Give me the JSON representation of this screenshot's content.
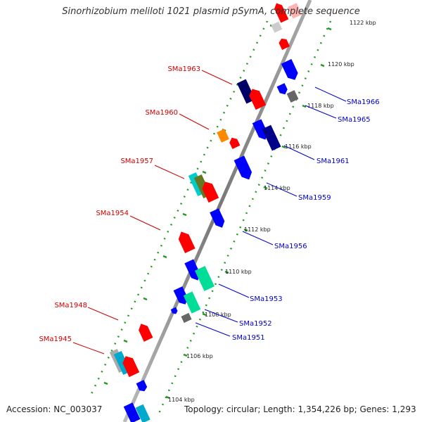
{
  "title": "Sinorhizobium meliloti 1021 plasmid pSymA, complete sequence",
  "accession": "Accession: NC_003037",
  "topology": "Topology: circular; Length: 1,354,226 bp; Genes: 1,293",
  "colors": {
    "forward_label": "#cc0000",
    "reverse_label": "#0000cc",
    "backbone": "#888888",
    "ticks": "#229922"
  },
  "scale_labels": [
    "1104 kbp",
    "1106 kbp",
    "1108 kbp",
    "1110 kbp",
    "1112 kbp",
    "1114 kbp",
    "1116 kbp",
    "1118 kbp",
    "1120 kbp",
    "1122 kbp"
  ],
  "forward_genes": [
    "SMa1963",
    "SMa1960",
    "SMa1957",
    "SMa1954",
    "SMa1948",
    "SMa1945"
  ],
  "reverse_genes": [
    "SMa1966",
    "SMa1965",
    "SMa1961",
    "SMa1959",
    "SMa1956",
    "SMa1953",
    "SMa1952",
    "SMa1951"
  ]
}
